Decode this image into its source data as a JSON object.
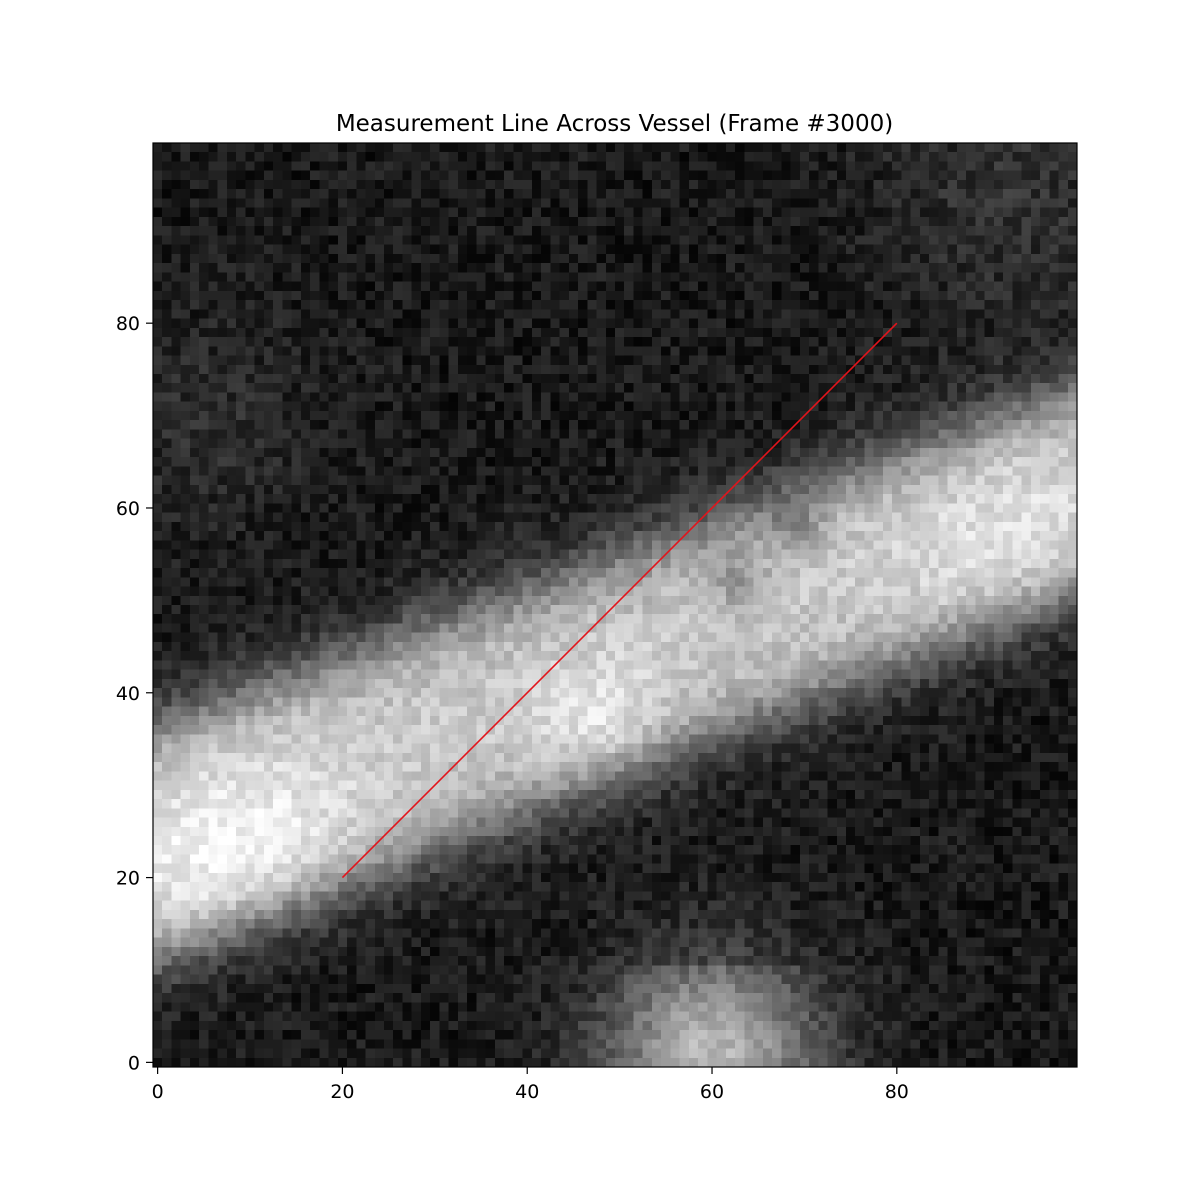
{
  "chart_data": {
    "type": "heatmap",
    "title": "Measurement Line Across Vessel (Frame #3000)",
    "xlabel": "",
    "ylabel": "",
    "image_shape": [
      100,
      100
    ],
    "xlim": [
      -0.5,
      99.5
    ],
    "ylim": [
      99.5,
      -0.5
    ],
    "colormap": "gray",
    "x_ticks": [
      0,
      20,
      40,
      60,
      80
    ],
    "y_ticks": [
      0,
      20,
      40,
      60,
      80
    ],
    "x_tick_labels": [
      "0",
      "20",
      "40",
      "60",
      "80"
    ],
    "y_tick_labels": [
      "0",
      "20",
      "40",
      "60",
      "80"
    ],
    "measurement_line": {
      "x": [
        20,
        80
      ],
      "y": [
        20,
        80
      ],
      "color": "#e3141b"
    },
    "grid": false
  }
}
